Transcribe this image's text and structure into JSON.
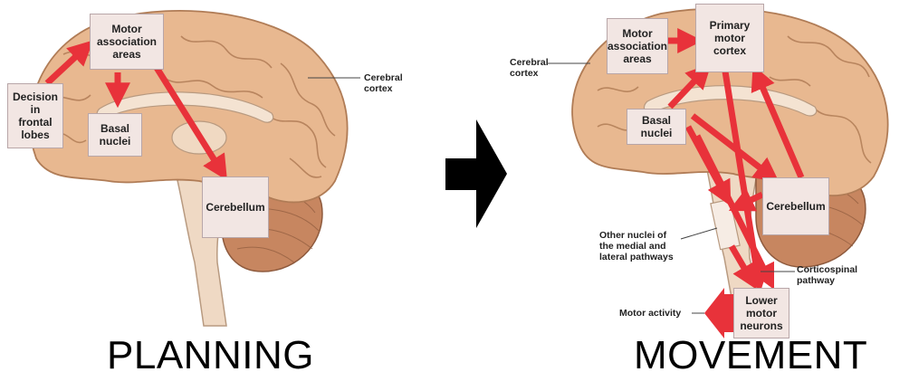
{
  "left": {
    "boxes": {
      "decision": "Decision\nin\nfrontal\nlobes",
      "motor_association": "Motor\nassociation\nareas",
      "basal": "Basal\nnuclei",
      "cerebellum": "Cerebellum"
    },
    "labels": {
      "cerebral_cortex": "Cerebral\ncortex"
    },
    "caption": "PLANNING"
  },
  "right": {
    "boxes": {
      "motor_association": "Motor\nassociation\nareas",
      "primary_motor": "Primary\nmotor\ncortex",
      "basal": "Basal\nnuclei",
      "cerebellum": "Cerebellum",
      "lower_motor": "Lower\nmotor\nneurons"
    },
    "labels": {
      "cerebral_cortex": "Cerebral\ncortex",
      "other_nuclei": "Other nuclei of\nthe medial and\nlateral pathways",
      "corticospinal": "Corticospinal\npathway",
      "motor_activity": "Motor activity"
    },
    "caption": "MOVEMENT"
  },
  "colors": {
    "arrow": "#e8323a",
    "box_fill": "#f2e6e3",
    "brain": "#e8b890",
    "brain_dark": "#c98f66"
  }
}
